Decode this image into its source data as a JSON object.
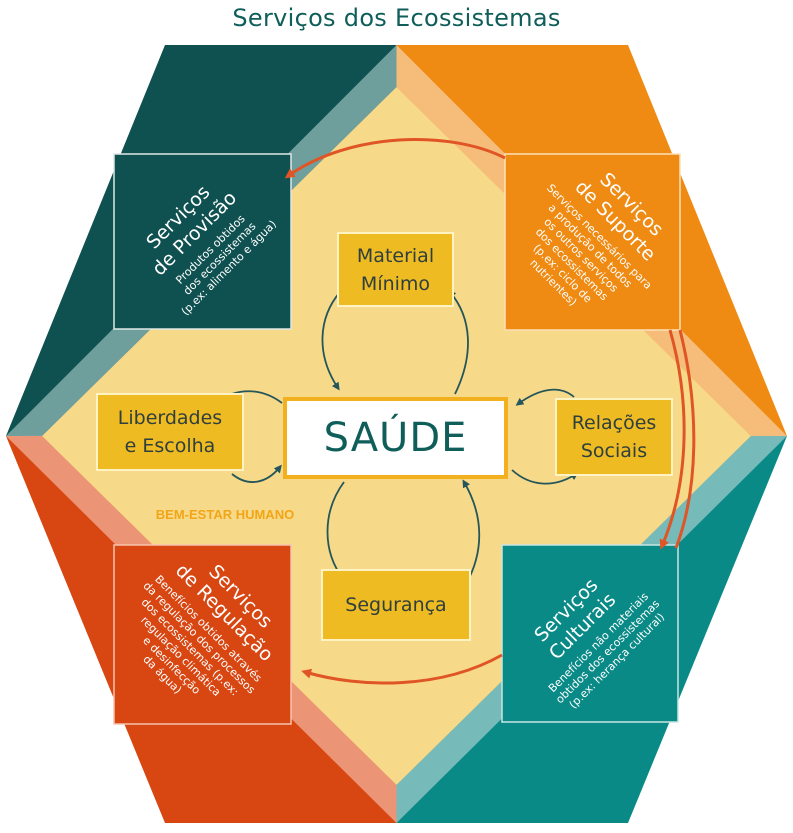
{
  "title": "Serviços dos Ecossistemas",
  "center": "SAÚDE",
  "wellbeing_label": "BEM-ESTAR HUMANO",
  "determinants": {
    "material_line1": "Material",
    "material_line2": "Mínimo",
    "liberdades_line1": "Liberdades",
    "liberdades_line2": "e Escolha",
    "relacoes_line1": "Relações",
    "relacoes_line2": "Sociais",
    "seguranca": "Segurança"
  },
  "services": {
    "provisao": {
      "head1": "Serviços",
      "head2": "de Provisão",
      "body1": "Produtos obtidos",
      "body2": "dos ecossistemas",
      "body3": "(p.ex: alimento e água)"
    },
    "suporte": {
      "head1": "Serviços",
      "head2": "de Suporte",
      "body1": "Serviços necessários para",
      "body2": "a produção de todos",
      "body3": "os outros serviços",
      "body4": "dos ecossistemas",
      "body5": "(p.ex: ciclo de",
      "body6": "nutrientes)"
    },
    "regulacao": {
      "head1": "Serviços",
      "head2": "de Regulação",
      "body1": "Benefícios obtidos através",
      "body2": "da regulação dos processos",
      "body3": "dos ecossistemas (p.ex:",
      "body4": "regulação climática",
      "body5": "e desinfecção",
      "body6": "da água)"
    },
    "culturais": {
      "head1": "Serviços",
      "head2": "Culturais",
      "body1": "Benefícios não materiais",
      "body2": "obtidos dos ecossistemas",
      "body3": "(p.ex: herança cultural)"
    }
  },
  "colors": {
    "provisao": "#0f5050",
    "suporte": "#ef8a12",
    "regulacao": "#d84612",
    "culturais": "#0a8a86",
    "inner": "#f7d98a",
    "determinant": "#eebb22",
    "arrow_orange": "#e05525",
    "arrow_teal": "#24565a"
  }
}
